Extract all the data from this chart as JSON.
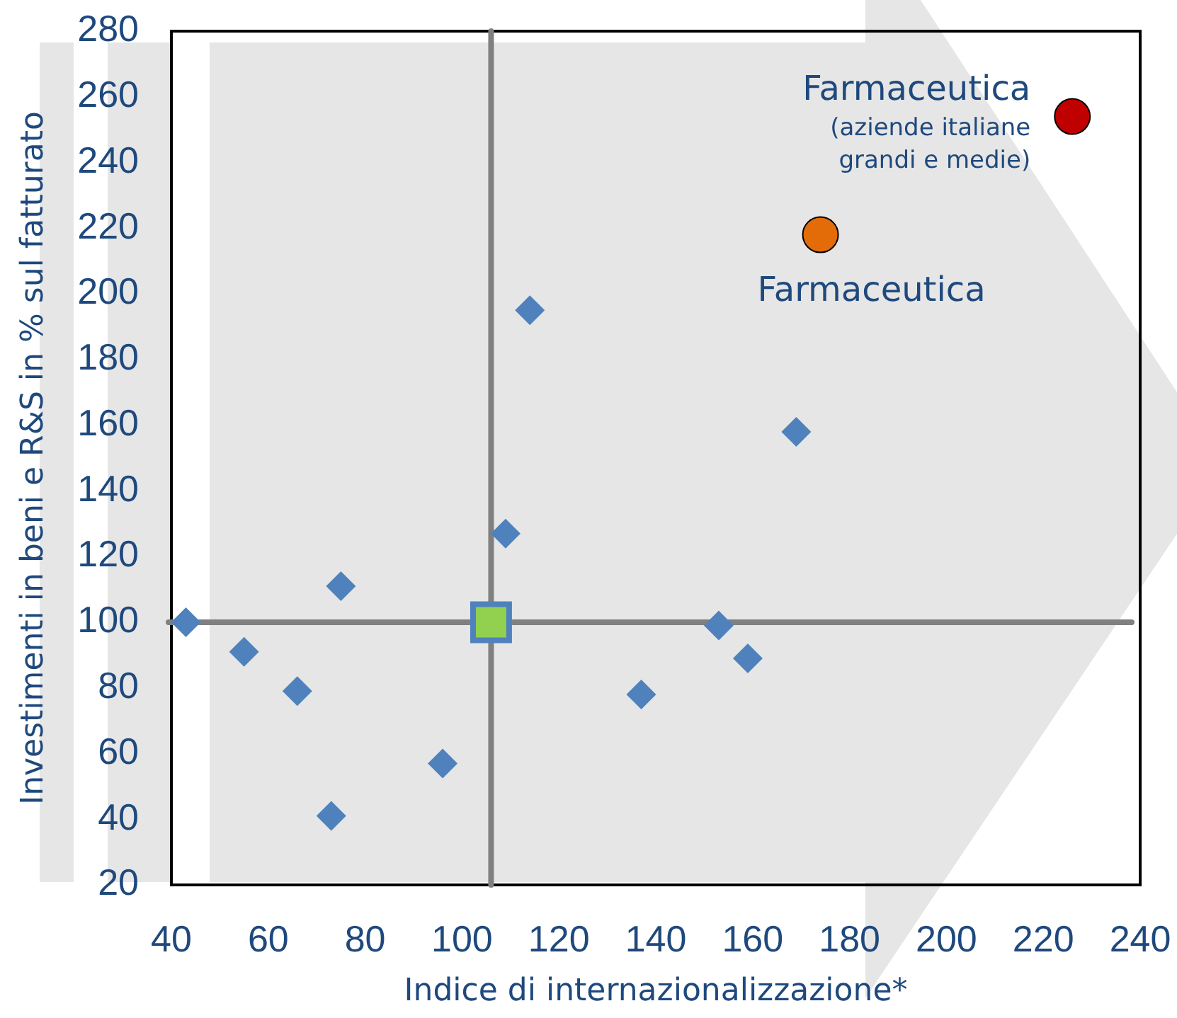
{
  "chart_data": {
    "type": "scatter",
    "xlabel": "Indice di internazionalizzazione*",
    "ylabel": "Investimenti in beni e R&S in % sul fatturato",
    "xlim": [
      40,
      240
    ],
    "ylim": [
      20,
      280
    ],
    "xticks": [
      40,
      60,
      80,
      100,
      120,
      140,
      160,
      180,
      200,
      220,
      240
    ],
    "yticks": [
      20,
      40,
      60,
      80,
      100,
      120,
      140,
      160,
      180,
      200,
      220,
      240,
      260,
      280
    ],
    "grid": false,
    "legend": false,
    "series": [
      {
        "color": "#4f81bd",
        "marker": "diamond",
        "x": [
          43,
          55,
          66,
          75,
          73,
          96,
          109,
          114,
          137,
          153,
          159,
          169
        ],
        "values": [
          100,
          91,
          79,
          111,
          41,
          57,
          127,
          195,
          78,
          99,
          89,
          158
        ]
      },
      {
        "color": "#92d050",
        "marker": "square",
        "x": [
          106
        ],
        "values": [
          100
        ]
      },
      {
        "name": "Farmaceutica",
        "color": "#e36c09",
        "marker": "circle",
        "x": [
          174
        ],
        "values": [
          218
        ]
      },
      {
        "name": "Farmaceutica",
        "color": "#c00000",
        "marker": "circle",
        "x": [
          226
        ],
        "values": [
          254
        ]
      }
    ],
    "ref_lines": [
      {
        "axis": "x",
        "value": 106,
        "color": "#808080"
      },
      {
        "axis": "y",
        "value": 100,
        "color": "#808080"
      }
    ],
    "annotations": [
      {
        "text": "(aziende italiane grandi e medie)",
        "x": 226,
        "y": 254
      }
    ]
  }
}
